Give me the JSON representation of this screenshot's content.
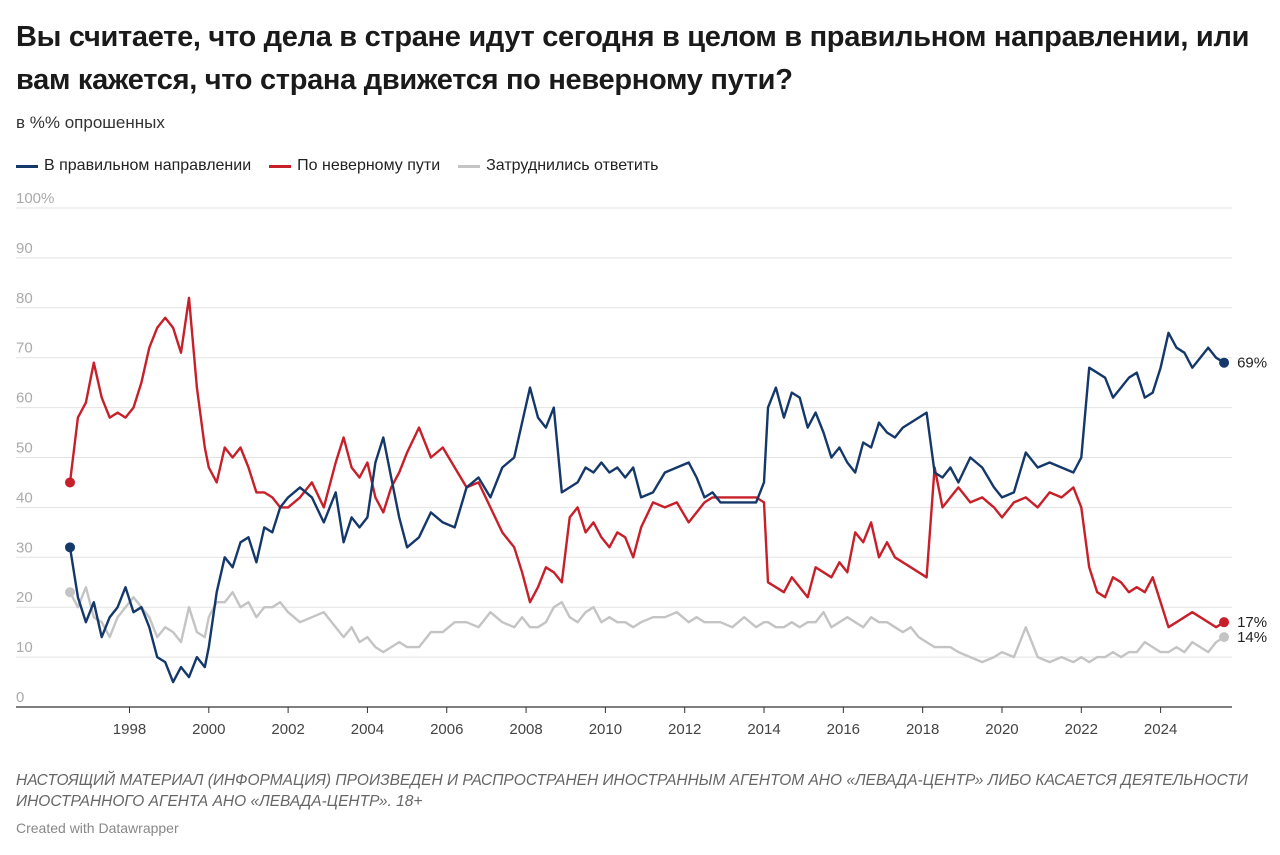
{
  "title": "Вы считаете, что дела в стране идут сегодня в целом в правильном направлении, или вам кажется, что страна движется по неверному пути?",
  "subtitle": "в %% опрошенных",
  "note": "НАСТОЯЩИЙ МАТЕРИАЛ (ИНФОРМАЦИЯ) ПРОИЗВЕДЕН И РАСПРОСТРАНЕН ИНОСТРАННЫМ АГЕНТОМ АНО «ЛЕВАДА-ЦЕНТР» ЛИБО КАСАЕТСЯ ДЕЯТЕЛЬНОСТИ ИНОСТРАННОГО АГЕНТА АНО «ЛЕВАДА-ЦЕНТР». 18+",
  "credit": "Created with Datawrapper",
  "colors": {
    "right": "#15386b",
    "wrong": "#c7202a",
    "dk": "#c4c4c4"
  },
  "chart_data": {
    "type": "line",
    "title": "Вы считаете, что дела в стране идут сегодня в целом в правильном направлении, или вам кажется, что страна движется по неверному пути?",
    "ylabel": "",
    "xlabel": "",
    "xlim": [
      1996.5,
      2025.8
    ],
    "ylim": [
      0,
      100
    ],
    "y_ticks": [
      "100%",
      "90",
      "80",
      "70",
      "60",
      "50",
      "40",
      "30",
      "20",
      "10",
      "0"
    ],
    "x_ticks": [
      "1998",
      "2000",
      "2002",
      "2004",
      "2006",
      "2008",
      "2010",
      "2012",
      "2014",
      "2016",
      "2018",
      "2020",
      "2022",
      "2024"
    ],
    "grid": true,
    "legend": "top-left",
    "series": [
      {
        "name": "В правильном направлении",
        "color": "#15386b",
        "end_label": "69%",
        "x": [
          1996.5,
          1996.7,
          1996.9,
          1997.1,
          1997.3,
          1997.5,
          1997.7,
          1997.9,
          1998.1,
          1998.3,
          1998.5,
          1998.7,
          1998.9,
          1999.1,
          1999.3,
          1999.5,
          1999.7,
          1999.9,
          2000.0,
          2000.2,
          2000.4,
          2000.6,
          2000.8,
          2001.0,
          2001.2,
          2001.4,
          2001.6,
          2001.8,
          2002.0,
          2002.3,
          2002.6,
          2002.9,
          2003.2,
          2003.4,
          2003.6,
          2003.8,
          2004.0,
          2004.2,
          2004.4,
          2004.6,
          2004.8,
          2005.0,
          2005.3,
          2005.6,
          2005.9,
          2006.2,
          2006.5,
          2006.8,
          2007.1,
          2007.4,
          2007.7,
          2007.9,
          2008.1,
          2008.3,
          2008.5,
          2008.7,
          2008.9,
          2009.1,
          2009.3,
          2009.5,
          2009.7,
          2009.9,
          2010.1,
          2010.3,
          2010.5,
          2010.7,
          2010.9,
          2011.2,
          2011.5,
          2011.8,
          2012.1,
          2012.3,
          2012.5,
          2012.7,
          2012.9,
          2013.2,
          2013.5,
          2013.8,
          2014.0,
          2014.1,
          2014.3,
          2014.5,
          2014.7,
          2014.9,
          2015.1,
          2015.3,
          2015.5,
          2015.7,
          2015.9,
          2016.1,
          2016.3,
          2016.5,
          2016.7,
          2016.9,
          2017.1,
          2017.3,
          2017.5,
          2017.7,
          2017.9,
          2018.1,
          2018.3,
          2018.5,
          2018.7,
          2018.9,
          2019.2,
          2019.5,
          2019.8,
          2020.0,
          2020.3,
          2020.6,
          2020.9,
          2021.2,
          2021.5,
          2021.8,
          2022.0,
          2022.2,
          2022.4,
          2022.6,
          2022.8,
          2023.0,
          2023.2,
          2023.4,
          2023.6,
          2023.8,
          2024.0,
          2024.2,
          2024.4,
          2024.6,
          2024.8,
          2025.0,
          2025.2,
          2025.4,
          2025.6
        ],
        "values": [
          32,
          22,
          17,
          21,
          14,
          18,
          20,
          24,
          19,
          20,
          16,
          10,
          9,
          5,
          8,
          6,
          10,
          8,
          12,
          23,
          30,
          28,
          33,
          34,
          29,
          36,
          35,
          40,
          42,
          44,
          42,
          37,
          43,
          33,
          38,
          36,
          38,
          49,
          54,
          46,
          38,
          32,
          34,
          39,
          37,
          36,
          44,
          46,
          42,
          48,
          50,
          57,
          64,
          58,
          56,
          60,
          43,
          44,
          45,
          48,
          47,
          49,
          47,
          48,
          46,
          48,
          42,
          43,
          47,
          48,
          49,
          46,
          42,
          43,
          41,
          41,
          41,
          41,
          45,
          60,
          64,
          58,
          63,
          62,
          56,
          59,
          55,
          50,
          52,
          49,
          47,
          53,
          52,
          57,
          55,
          54,
          56,
          57,
          58,
          59,
          47,
          46,
          48,
          45,
          50,
          48,
          44,
          42,
          43,
          51,
          48,
          49,
          48,
          47,
          50,
          68,
          67,
          66,
          62,
          64,
          66,
          67,
          62,
          63,
          68,
          75,
          72,
          71,
          68,
          70,
          72,
          70,
          69
        ]
      },
      {
        "name": "По неверному пути",
        "color": "#c7202a",
        "end_label": "17%",
        "x": [
          1996.5,
          1996.7,
          1996.9,
          1997.1,
          1997.3,
          1997.5,
          1997.7,
          1997.9,
          1998.1,
          1998.3,
          1998.5,
          1998.7,
          1998.9,
          1999.1,
          1999.3,
          1999.5,
          1999.7,
          1999.9,
          2000.0,
          2000.2,
          2000.4,
          2000.6,
          2000.8,
          2001.0,
          2001.2,
          2001.4,
          2001.6,
          2001.8,
          2002.0,
          2002.3,
          2002.6,
          2002.9,
          2003.2,
          2003.4,
          2003.6,
          2003.8,
          2004.0,
          2004.2,
          2004.4,
          2004.6,
          2004.8,
          2005.0,
          2005.3,
          2005.6,
          2005.9,
          2006.2,
          2006.5,
          2006.8,
          2007.1,
          2007.4,
          2007.7,
          2007.9,
          2008.1,
          2008.3,
          2008.5,
          2008.7,
          2008.9,
          2009.1,
          2009.3,
          2009.5,
          2009.7,
          2009.9,
          2010.1,
          2010.3,
          2010.5,
          2010.7,
          2010.9,
          2011.2,
          2011.5,
          2011.8,
          2012.1,
          2012.3,
          2012.5,
          2012.7,
          2012.9,
          2013.2,
          2013.5,
          2013.8,
          2014.0,
          2014.1,
          2014.3,
          2014.5,
          2014.7,
          2014.9,
          2015.1,
          2015.3,
          2015.5,
          2015.7,
          2015.9,
          2016.1,
          2016.3,
          2016.5,
          2016.7,
          2016.9,
          2017.1,
          2017.3,
          2017.5,
          2017.7,
          2017.9,
          2018.1,
          2018.3,
          2018.5,
          2018.7,
          2018.9,
          2019.2,
          2019.5,
          2019.8,
          2020.0,
          2020.3,
          2020.6,
          2020.9,
          2021.2,
          2021.5,
          2021.8,
          2022.0,
          2022.2,
          2022.4,
          2022.6,
          2022.8,
          2023.0,
          2023.2,
          2023.4,
          2023.6,
          2023.8,
          2024.0,
          2024.2,
          2024.4,
          2024.6,
          2024.8,
          2025.0,
          2025.2,
          2025.4,
          2025.6
        ],
        "values": [
          45,
          58,
          61,
          69,
          62,
          58,
          59,
          58,
          60,
          65,
          72,
          76,
          78,
          76,
          71,
          82,
          64,
          52,
          48,
          45,
          52,
          50,
          52,
          48,
          43,
          43,
          42,
          40,
          40,
          42,
          45,
          40,
          49,
          54,
          48,
          46,
          49,
          42,
          39,
          44,
          47,
          51,
          56,
          50,
          52,
          48,
          44,
          45,
          40,
          35,
          32,
          27,
          21,
          24,
          28,
          27,
          25,
          38,
          40,
          35,
          37,
          34,
          32,
          35,
          34,
          30,
          36,
          41,
          40,
          41,
          37,
          39,
          41,
          42,
          42,
          42,
          42,
          42,
          41,
          25,
          24,
          23,
          26,
          24,
          22,
          28,
          27,
          26,
          29,
          27,
          35,
          33,
          37,
          30,
          33,
          30,
          29,
          28,
          27,
          26,
          48,
          40,
          42,
          44,
          41,
          42,
          40,
          38,
          41,
          42,
          40,
          43,
          42,
          44,
          40,
          28,
          23,
          22,
          26,
          25,
          23,
          24,
          23,
          26,
          21,
          16,
          17,
          18,
          19,
          18,
          17,
          16,
          17
        ]
      },
      {
        "name": "Затруднились ответить",
        "color": "#c4c4c4",
        "end_label": "14%",
        "x": [
          1996.5,
          1996.7,
          1996.9,
          1997.1,
          1997.3,
          1997.5,
          1997.7,
          1997.9,
          1998.1,
          1998.3,
          1998.5,
          1998.7,
          1998.9,
          1999.1,
          1999.3,
          1999.5,
          1999.7,
          1999.9,
          2000.0,
          2000.2,
          2000.4,
          2000.6,
          2000.8,
          2001.0,
          2001.2,
          2001.4,
          2001.6,
          2001.8,
          2002.0,
          2002.3,
          2002.6,
          2002.9,
          2003.2,
          2003.4,
          2003.6,
          2003.8,
          2004.0,
          2004.2,
          2004.4,
          2004.6,
          2004.8,
          2005.0,
          2005.3,
          2005.6,
          2005.9,
          2006.2,
          2006.5,
          2006.8,
          2007.1,
          2007.4,
          2007.7,
          2007.9,
          2008.1,
          2008.3,
          2008.5,
          2008.7,
          2008.9,
          2009.1,
          2009.3,
          2009.5,
          2009.7,
          2009.9,
          2010.1,
          2010.3,
          2010.5,
          2010.7,
          2010.9,
          2011.2,
          2011.5,
          2011.8,
          2012.1,
          2012.3,
          2012.5,
          2012.7,
          2012.9,
          2013.2,
          2013.5,
          2013.8,
          2014.0,
          2014.1,
          2014.3,
          2014.5,
          2014.7,
          2014.9,
          2015.1,
          2015.3,
          2015.5,
          2015.7,
          2015.9,
          2016.1,
          2016.3,
          2016.5,
          2016.7,
          2016.9,
          2017.1,
          2017.3,
          2017.5,
          2017.7,
          2017.9,
          2018.1,
          2018.3,
          2018.5,
          2018.7,
          2018.9,
          2019.2,
          2019.5,
          2019.8,
          2020.0,
          2020.3,
          2020.6,
          2020.9,
          2021.2,
          2021.5,
          2021.8,
          2022.0,
          2022.2,
          2022.4,
          2022.6,
          2022.8,
          2023.0,
          2023.2,
          2023.4,
          2023.6,
          2023.8,
          2024.0,
          2024.2,
          2024.4,
          2024.6,
          2024.8,
          2025.0,
          2025.2,
          2025.4,
          2025.6
        ],
        "values": [
          23,
          20,
          24,
          18,
          17,
          14,
          18,
          20,
          22,
          20,
          18,
          14,
          16,
          15,
          13,
          20,
          15,
          14,
          18,
          21,
          21,
          23,
          20,
          21,
          18,
          20,
          20,
          21,
          19,
          17,
          18,
          19,
          16,
          14,
          16,
          13,
          14,
          12,
          11,
          12,
          13,
          12,
          12,
          15,
          15,
          17,
          17,
          16,
          19,
          17,
          16,
          18,
          16,
          16,
          17,
          20,
          21,
          18,
          17,
          19,
          20,
          17,
          18,
          17,
          17,
          16,
          17,
          18,
          18,
          19,
          17,
          18,
          17,
          17,
          17,
          16,
          18,
          16,
          17,
          17,
          16,
          16,
          17,
          16,
          17,
          17,
          19,
          16,
          17,
          18,
          17,
          16,
          18,
          17,
          17,
          16,
          15,
          16,
          14,
          13,
          12,
          12,
          12,
          11,
          10,
          9,
          10,
          11,
          10,
          16,
          10,
          9,
          10,
          9,
          10,
          9,
          10,
          10,
          11,
          10,
          11,
          11,
          13,
          12,
          11,
          11,
          12,
          11,
          13,
          12,
          11,
          13,
          14
        ]
      }
    ]
  }
}
